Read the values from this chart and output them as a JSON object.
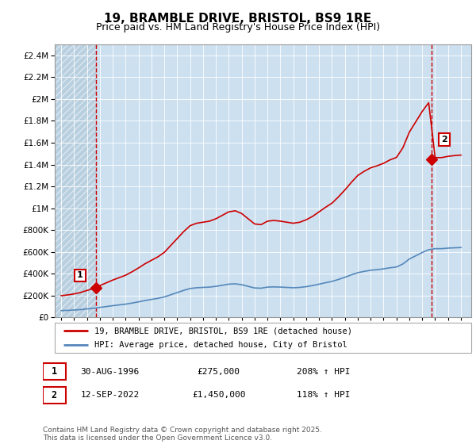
{
  "title": "19, BRAMBLE DRIVE, BRISTOL, BS9 1RE",
  "subtitle": "Price paid vs. HM Land Registry's House Price Index (HPI)",
  "title_fontsize": 11,
  "subtitle_fontsize": 9,
  "sale1_year": 1996.67,
  "sale1_price": 275000,
  "sale1_label": "1",
  "sale1_text": "30-AUG-1996",
  "sale1_price_text": "£275,000",
  "sale1_hpi_text": "208% ↑ HPI",
  "sale2_year": 2022.71,
  "sale2_price": 1450000,
  "sale2_label": "2",
  "sale2_text": "12-SEP-2022",
  "sale2_price_text": "£1,450,000",
  "sale2_hpi_text": "118% ↑ HPI",
  "legend_line1": "19, BRAMBLE DRIVE, BRISTOL, BS9 1RE (detached house)",
  "legend_line2": "HPI: Average price, detached house, City of Bristol",
  "footer": "Contains HM Land Registry data © Crown copyright and database right 2025.\nThis data is licensed under the Open Government Licence v3.0.",
  "red_color": "#cc0000",
  "blue_color": "#5588bb",
  "ylim_max": 2500000,
  "xlim_min": 1993.5,
  "xlim_max": 2025.8,
  "plot_bg": "#cce0f0",
  "hatch_bg": "#b8cfe0"
}
